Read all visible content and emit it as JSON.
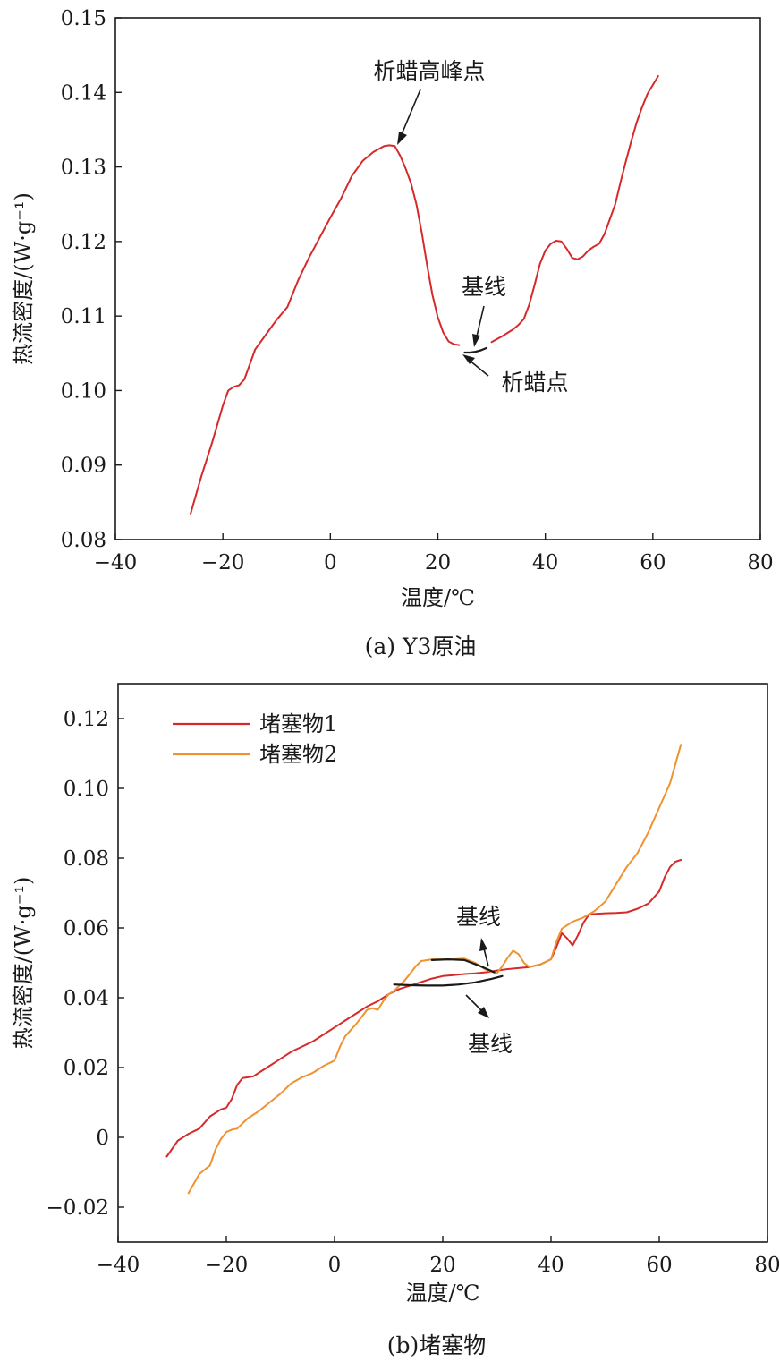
{
  "chart_data": [
    {
      "panel": "a",
      "type": "line",
      "caption": "(a) Y3原油",
      "xlabel": "温度/℃",
      "ylabel": "热流密度/(W·g⁻¹)",
      "xlim": [
        -40,
        80
      ],
      "ylim": [
        0.08,
        0.15
      ],
      "xticks": [
        -40,
        -20,
        0,
        20,
        40,
        60,
        80
      ],
      "yticks": [
        0.08,
        0.09,
        0.1,
        0.11,
        0.12,
        0.13,
        0.14,
        0.15
      ],
      "xtick_labels": [
        "−40",
        "−20",
        "0",
        "20",
        "40",
        "60",
        "80"
      ],
      "ytick_labels": [
        "0.08",
        "0.09",
        "0.10",
        "0.11",
        "0.12",
        "0.13",
        "0.14",
        "0.15"
      ],
      "grid": false,
      "series": [
        {
          "color": "#d62a2a",
          "x": [
            -26,
            -24,
            -22,
            -20,
            -19,
            -18,
            -17,
            -16,
            -15,
            -14,
            -13,
            -12,
            -10,
            -8,
            -6,
            -4,
            -2,
            0,
            2,
            4,
            6,
            8,
            10,
            11,
            12,
            13,
            14,
            15,
            16,
            17,
            18,
            19,
            20,
            21,
            22,
            23,
            24
          ],
          "y": [
            0.0835,
            0.0885,
            0.093,
            0.098,
            0.1,
            0.1005,
            0.1007,
            0.1015,
            0.1035,
            0.1055,
            0.1065,
            0.1075,
            0.1095,
            0.1112,
            0.1148,
            0.1178,
            0.1205,
            0.1232,
            0.1258,
            0.1288,
            0.1308,
            0.132,
            0.1328,
            0.1329,
            0.1328,
            0.1315,
            0.1298,
            0.1278,
            0.125,
            0.1212,
            0.1168,
            0.1128,
            0.1098,
            0.1078,
            0.1066,
            0.1062,
            0.1061
          ]
        },
        {
          "color": "#d62a2a",
          "x": [
            30,
            32,
            34,
            35,
            36,
            37,
            38,
            39,
            40,
            41,
            42,
            43,
            44,
            45,
            46,
            47,
            48,
            49,
            50,
            51,
            52,
            53,
            54,
            55,
            56,
            57,
            58,
            59,
            60,
            61
          ],
          "y": [
            0.1065,
            0.1073,
            0.1082,
            0.1088,
            0.1096,
            0.1115,
            0.1142,
            0.117,
            0.1188,
            0.1197,
            0.1201,
            0.12,
            0.119,
            0.1178,
            0.1176,
            0.118,
            0.1188,
            0.1193,
            0.1197,
            0.121,
            0.123,
            0.125,
            0.128,
            0.1308,
            0.1335,
            0.136,
            0.138,
            0.1398,
            0.141,
            0.1422
          ]
        },
        {
          "color": "#1a1a1a",
          "x": [
            25,
            26,
            27,
            28,
            29
          ],
          "y": [
            0.1051,
            0.1051,
            0.1052,
            0.1054,
            0.1057
          ]
        }
      ],
      "annotations": [
        {
          "text": "析蜡高峰点",
          "x": 12.5,
          "y": 0.1329
        },
        {
          "text": "基线",
          "x": 27.5,
          "y": 0.1056
        },
        {
          "text": "析蜡点",
          "x": 25,
          "y": 0.105
        }
      ]
    },
    {
      "panel": "b",
      "type": "line",
      "caption": "(b)堵塞物",
      "xlabel": "温度/℃",
      "ylabel": "热流密度/(W·g⁻¹)",
      "xlim": [
        -40,
        80
      ],
      "ylim": [
        -0.03,
        0.13
      ],
      "xticks": [
        -40,
        -20,
        0,
        20,
        40,
        60,
        80
      ],
      "yticks": [
        -0.02,
        0,
        0.02,
        0.04,
        0.06,
        0.08,
        0.1,
        0.12
      ],
      "xtick_labels": [
        "−40",
        "−20",
        "0",
        "20",
        "40",
        "60",
        "80"
      ],
      "ytick_labels": [
        "−0.02",
        "0",
        "0.02",
        "0.04",
        "0.06",
        "0.08",
        "0.10",
        "0.12"
      ],
      "grid": false,
      "legend_placement": "top-left",
      "series": [
        {
          "name": "堵塞物1",
          "color": "#d62a2a",
          "x": [
            -31,
            -29,
            -27,
            -25,
            -23,
            -21,
            -20,
            -19,
            -18,
            -17,
            -16,
            -15,
            -14,
            -12,
            -10,
            -8,
            -6,
            -4,
            -2,
            0,
            2,
            4,
            6,
            8,
            10,
            12,
            14,
            16,
            18,
            20,
            22,
            24,
            26,
            28,
            30,
            32,
            34,
            36,
            38,
            40,
            41,
            42,
            43,
            44,
            45,
            46,
            47,
            48,
            50,
            52,
            54,
            56,
            58,
            60,
            61,
            62,
            63,
            64
          ],
          "y": [
            -0.0055,
            -0.001,
            0.001,
            0.0025,
            0.006,
            0.008,
            0.0085,
            0.011,
            0.015,
            0.017,
            0.0172,
            0.0175,
            0.0185,
            0.0205,
            0.0225,
            0.0245,
            0.026,
            0.0275,
            0.0295,
            0.0315,
            0.0335,
            0.0355,
            0.0375,
            0.039,
            0.041,
            0.0425,
            0.0435,
            0.0445,
            0.0455,
            0.0462,
            0.0465,
            0.0468,
            0.047,
            0.0473,
            0.0478,
            0.0482,
            0.0485,
            0.0488,
            0.0495,
            0.051,
            0.0545,
            0.0585,
            0.057,
            0.055,
            0.058,
            0.0615,
            0.0638,
            0.064,
            0.0642,
            0.0643,
            0.0645,
            0.0655,
            0.067,
            0.0705,
            0.0745,
            0.0775,
            0.079,
            0.0795
          ]
        },
        {
          "name": "堵塞物2",
          "color": "#f0922e",
          "x": [
            -27,
            -25,
            -23,
            -22,
            -21,
            -20,
            -19,
            -18,
            -17,
            -16,
            -14,
            -12,
            -10,
            -8,
            -6,
            -4,
            -2,
            0,
            1,
            2,
            4,
            6,
            7,
            8,
            9,
            10,
            11,
            12,
            13,
            14,
            15,
            16,
            18,
            20,
            22,
            24,
            26,
            28,
            30,
            31,
            32,
            33,
            34,
            35,
            36,
            37,
            38,
            40,
            41,
            42,
            44,
            46,
            48,
            50,
            52,
            54,
            56,
            58,
            60,
            62,
            63,
            64
          ],
          "y": [
            -0.016,
            -0.0105,
            -0.008,
            -0.0035,
            -0.0005,
            0.0015,
            0.0022,
            0.0025,
            0.004,
            0.0055,
            0.0075,
            0.01,
            0.0125,
            0.0155,
            0.0172,
            0.0185,
            0.0205,
            0.022,
            0.026,
            0.029,
            0.0325,
            0.0365,
            0.037,
            0.0365,
            0.039,
            0.041,
            0.042,
            0.0435,
            0.045,
            0.047,
            0.049,
            0.0505,
            0.051,
            0.051,
            0.051,
            0.0512,
            0.05,
            0.048,
            0.047,
            0.049,
            0.0515,
            0.0535,
            0.0525,
            0.05,
            0.0488,
            0.0492,
            0.0495,
            0.051,
            0.056,
            0.0598,
            0.0618,
            0.063,
            0.0648,
            0.0675,
            0.0725,
            0.0775,
            0.0815,
            0.0875,
            0.0945,
            0.1015,
            0.107,
            0.1125
          ]
        },
        {
          "color": "#1a1a1a",
          "x": [
            11,
            14,
            17,
            20,
            23,
            26,
            29,
            31
          ],
          "y": [
            0.0438,
            0.0436,
            0.0435,
            0.0435,
            0.0438,
            0.0444,
            0.0454,
            0.0462
          ]
        },
        {
          "color": "#1a1a1a",
          "x": [
            18,
            21,
            24,
            27,
            29.5
          ],
          "y": [
            0.0508,
            0.051,
            0.0508,
            0.049,
            0.0473
          ]
        }
      ],
      "annotations": [
        {
          "text": "基线",
          "x": 28,
          "y": 0.053
        },
        {
          "text": "基线",
          "x": 28,
          "y": 0.0395
        }
      ]
    }
  ]
}
